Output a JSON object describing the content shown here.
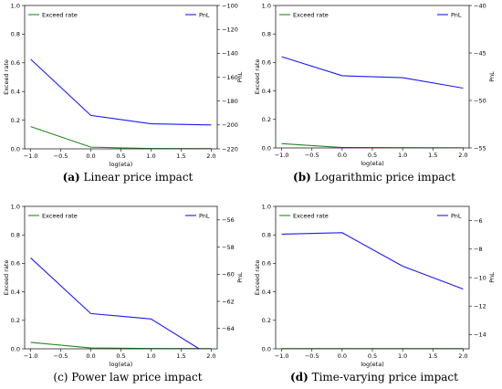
{
  "chart_data": [
    {
      "type": "line",
      "caption": {
        "letter": "(a)",
        "text": "Linear price impact",
        "letter_bold": true
      },
      "xlabel": "log(eta)",
      "ylabel_left": "Exceed rate",
      "ylabel_right": "PnL",
      "xlim": [
        -1.1,
        2.1
      ],
      "xticks": [
        -1.0,
        -0.5,
        0.0,
        0.5,
        1.0,
        1.5,
        2.0
      ],
      "xtick_labels": [
        "−1.0",
        "−0.5",
        "0.0",
        "0.5",
        "1.0",
        "1.5",
        "2.0"
      ],
      "ylim_left": [
        0,
        1
      ],
      "yticks_left": [
        0,
        0.2,
        0.4,
        0.6,
        0.8,
        1.0
      ],
      "ytick_labels_left": [
        "0.0",
        "0.2",
        "0.4",
        "0.6",
        "0.8",
        "1.0"
      ],
      "ylim_right": [
        -220,
        -100
      ],
      "yticks_right": [
        -220,
        -200,
        -180,
        -160,
        -140,
        -120,
        -100
      ],
      "ytick_labels_right": [
        "−220",
        "−200",
        "−180",
        "−160",
        "−140",
        "−120",
        "−100"
      ],
      "series": [
        {
          "name": "Exceed rate",
          "axis": "left",
          "color": "#1f8a1f",
          "x": [
            -1,
            0,
            1,
            2
          ],
          "y": [
            0.155,
            0.012,
            0.002,
            0.001
          ]
        },
        {
          "name": "PnL",
          "axis": "right",
          "color": "#1a1aff",
          "x": [
            -1,
            0,
            1,
            2
          ],
          "y": [
            -145,
            -192,
            -199,
            -200
          ]
        }
      ]
    },
    {
      "type": "line",
      "caption": {
        "letter": "(b)",
        "text": "Logarithmic price impact",
        "letter_bold": true
      },
      "xlabel": "log(eta)",
      "ylabel_left": "Exceed rate",
      "ylabel_right": "PnL",
      "xlim": [
        -1.1,
        2.1
      ],
      "xticks": [
        -1.0,
        -0.5,
        0.0,
        0.5,
        1.0,
        1.5,
        2.0
      ],
      "xtick_labels": [
        "−1.0",
        "−0.5",
        "0.0",
        "0.5",
        "1.0",
        "1.5",
        "2.0"
      ],
      "ylim_left": [
        0,
        1
      ],
      "yticks_left": [
        0,
        0.2,
        0.4,
        0.6,
        0.8,
        1.0
      ],
      "ytick_labels_left": [
        "0.0",
        "0.2",
        "0.4",
        "0.6",
        "0.8",
        "1.0"
      ],
      "ylim_right": [
        -55,
        -40
      ],
      "yticks_right": [
        -55,
        -50,
        -45,
        -40
      ],
      "ytick_labels_right": [
        "−55",
        "−50",
        "−45",
        "−40"
      ],
      "series": [
        {
          "name": "Exceed rate",
          "axis": "left",
          "color": "#1f8a1f",
          "x": [
            -1,
            0,
            1,
            2
          ],
          "y": [
            0.03,
            0.003,
            0.001,
            0.0005
          ]
        },
        {
          "name": "PnL",
          "axis": "right",
          "color": "#1a1aff",
          "x": [
            -1,
            0,
            1,
            2
          ],
          "y": [
            -45.4,
            -47.4,
            -47.6,
            -48.7
          ]
        }
      ]
    },
    {
      "type": "line",
      "caption": {
        "letter": "(c)",
        "text": "Power law price impact",
        "letter_bold": false
      },
      "xlabel": "log(eta)",
      "ylabel_left": "Exceed rate",
      "ylabel_right": "PnL",
      "xlim": [
        -1.1,
        2.1
      ],
      "xticks": [
        -1.0,
        -0.5,
        0.0,
        0.5,
        1.0,
        1.5,
        2.0
      ],
      "xtick_labels": [
        "−1.0",
        "−0.5",
        "0.0",
        "0.5",
        "1.0",
        "1.5",
        "2.0"
      ],
      "ylim_left": [
        0,
        1
      ],
      "yticks_left": [
        0,
        0.2,
        0.4,
        0.6,
        0.8,
        1.0
      ],
      "ytick_labels_left": [
        "0.0",
        "0.2",
        "0.4",
        "0.6",
        "0.8",
        "1.0"
      ],
      "ylim_right": [
        -65.5,
        -55
      ],
      "yticks_right": [
        -64,
        -62,
        -60,
        -58,
        -56
      ],
      "ytick_labels_right": [
        "−64",
        "−62",
        "−60",
        "−58",
        "−56"
      ],
      "series": [
        {
          "name": "Exceed rate",
          "axis": "left",
          "color": "#1f8a1f",
          "x": [
            -1,
            0,
            1,
            2
          ],
          "y": [
            0.045,
            0.006,
            0.002,
            0.001
          ]
        },
        {
          "name": "PnL",
          "axis": "right",
          "color": "#1a1aff",
          "x": [
            -1,
            0,
            1,
            1.8
          ],
          "y": [
            -58.8,
            -62.9,
            -63.3,
            -65.5
          ]
        }
      ]
    },
    {
      "type": "line",
      "caption": {
        "letter": "(d)",
        "text": "Time-varying price impact",
        "letter_bold": true
      },
      "xlabel": "log(eta)",
      "ylabel_left": "Exceed rate",
      "ylabel_right": "PnL",
      "xlim": [
        -1.1,
        2.1
      ],
      "xticks": [
        -1.0,
        -0.5,
        0.0,
        0.5,
        1.0,
        1.5,
        2.0
      ],
      "xtick_labels": [
        "−1.0",
        "−0.5",
        "0.0",
        "0.5",
        "1.0",
        "1.5",
        "2.0"
      ],
      "ylim_left": [
        0,
        1
      ],
      "yticks_left": [
        0,
        0.2,
        0.4,
        0.6,
        0.8,
        1.0
      ],
      "ytick_labels_left": [
        "0.0",
        "0.2",
        "0.4",
        "0.6",
        "0.8",
        "1.0"
      ],
      "ylim_right": [
        -15,
        -5
      ],
      "yticks_right": [
        -14,
        -12,
        -10,
        -8,
        -6
      ],
      "ytick_labels_right": [
        "−14",
        "−12",
        "−10",
        "−8",
        "−6"
      ],
      "series": [
        {
          "name": "Exceed rate",
          "axis": "left",
          "color": "#1f8a1f",
          "x": [
            -1,
            0,
            1,
            2
          ],
          "y": [
            0.001,
            0.001,
            0.001,
            0.001
          ]
        },
        {
          "name": "PnL",
          "axis": "right",
          "color": "#1a1aff",
          "x": [
            -1,
            0,
            1,
            2
          ],
          "y": [
            -6.95,
            -6.85,
            -9.2,
            -10.8
          ]
        }
      ]
    }
  ]
}
